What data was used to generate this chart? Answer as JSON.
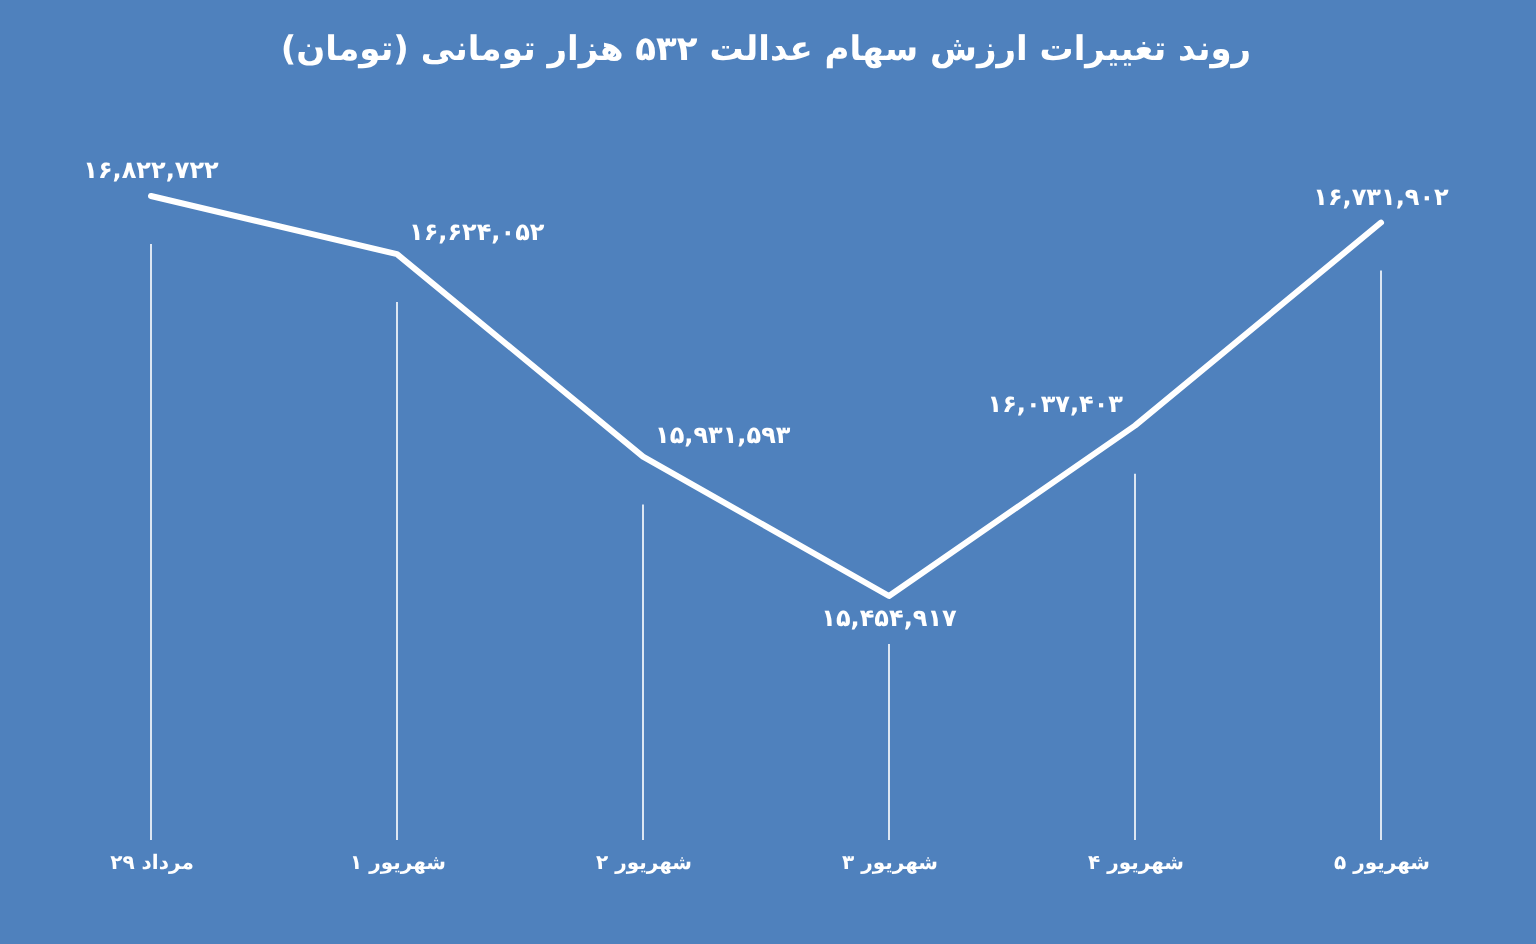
{
  "chart_data": {
    "type": "line",
    "title": "روند تغییرات ارزش سهام عدالت ۵۳۲ هزار تومانی (تومان)",
    "categories": [
      "۲۹ مرداد",
      "۱ شهریور",
      "۲ شهریور",
      "۳ شهریور",
      "۴ شهریور",
      "۵ شهریور"
    ],
    "series": [
      {
        "color": "#ffffff",
        "values": [
          16822722,
          16624052,
          15931593,
          15454917,
          16037403,
          16731902
        ],
        "value_labels": [
          "۱۶,۸۲۲,۷۲۲",
          "۱۶,۶۲۴,۰۵۲",
          "۱۵,۹۳۱,۵۹۳",
          "۱۵,۴۵۴,۹۱۷",
          "۱۶,۰۳۷,۴۰۳",
          "۱۶,۷۳۱,۹۰۲"
        ]
      }
    ],
    "grid": "x",
    "tick_labels": "x",
    "line_style": "solid"
  }
}
